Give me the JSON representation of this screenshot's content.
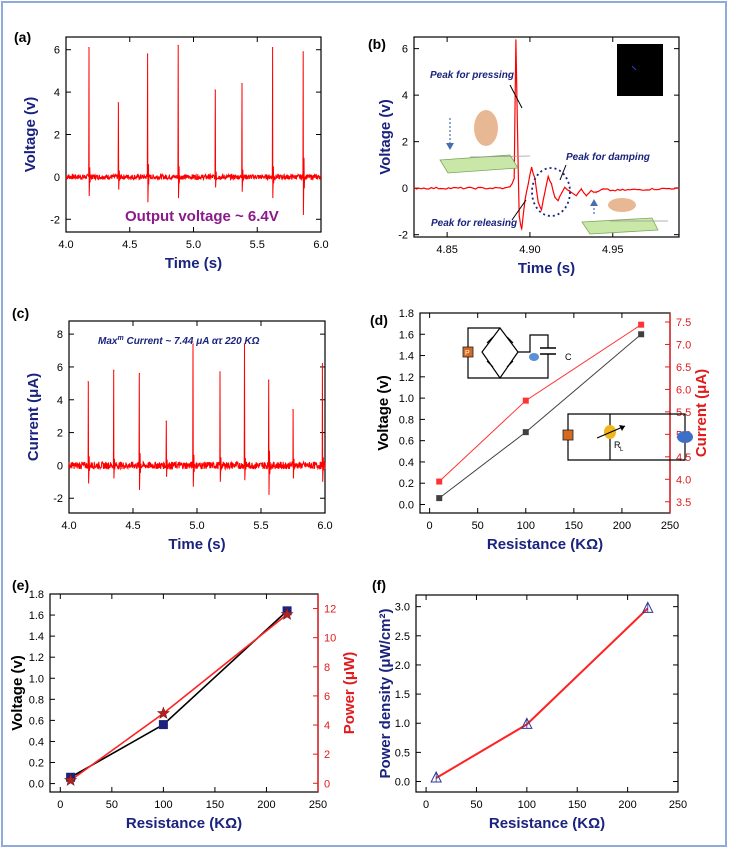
{
  "panels": {
    "a": {
      "label": "(a)"
    },
    "b": {
      "label": "(b)"
    },
    "c": {
      "label": "(c)"
    },
    "d": {
      "label": "(d)"
    },
    "e": {
      "label": "(e)"
    },
    "f": {
      "label": "(f)"
    }
  },
  "chart_data": [
    {
      "id": "a",
      "type": "line",
      "xlabel": "Time (s)",
      "ylabel": "Voltage (v)",
      "xlim": [
        4.0,
        6.0
      ],
      "ylim": [
        -2.6,
        6.6
      ],
      "xticks": [
        4.0,
        4.5,
        5.0,
        5.5,
        6.0
      ],
      "yticks": [
        -2,
        0,
        2,
        4,
        6
      ],
      "xtick_labels": [
        "4.0",
        "4.5",
        "5.0",
        "5.5",
        "6.0"
      ],
      "ytick_labels": [
        "-2",
        "0",
        "2",
        "4",
        "6"
      ],
      "annotation": "Output voltage ~ 6.4V",
      "color": "#ff0000",
      "peaks": [
        {
          "x": 4.18,
          "y": 6.1,
          "neg": -0.9
        },
        {
          "x": 4.41,
          "y": 3.5,
          "neg": -0.6
        },
        {
          "x": 4.64,
          "y": 5.8,
          "neg": -1.2
        },
        {
          "x": 4.88,
          "y": 6.2,
          "neg": -1.0
        },
        {
          "x": 5.17,
          "y": 4.1,
          "neg": -0.5
        },
        {
          "x": 5.38,
          "y": 4.4,
          "neg": -0.7
        },
        {
          "x": 5.62,
          "y": 6.1,
          "neg": -1.0
        },
        {
          "x": 5.86,
          "y": 5.9,
          "neg": -1.8
        }
      ]
    },
    {
      "id": "b",
      "type": "line",
      "xlabel": "Time (s)",
      "ylabel": "Voltage (v)",
      "xlim": [
        4.83,
        4.99
      ],
      "ylim": [
        -2.1,
        6.5
      ],
      "xticks": [
        4.85,
        4.9,
        4.95
      ],
      "yticks": [
        -2,
        0,
        2,
        4,
        6
      ],
      "xtick_labels": [
        "4.85",
        "4.90",
        "4.95"
      ],
      "ytick_labels": [
        "-2",
        "0",
        "2",
        "4",
        "6"
      ],
      "color": "#ff0000",
      "annotations": [
        "Peak for pressing",
        "Peak for releasing",
        "Peak for damping"
      ],
      "curve": [
        [
          4.83,
          0.0
        ],
        [
          4.885,
          0.0
        ],
        [
          4.888,
          0.05
        ],
        [
          4.8905,
          0.4
        ],
        [
          4.8915,
          6.4
        ],
        [
          4.8925,
          2.5
        ],
        [
          4.8935,
          -1.2
        ],
        [
          4.895,
          -1.8
        ],
        [
          4.897,
          -0.5
        ],
        [
          4.899,
          0.2
        ],
        [
          4.901,
          0.9
        ],
        [
          4.903,
          0.4
        ],
        [
          4.905,
          -0.6
        ],
        [
          4.907,
          -0.9
        ],
        [
          4.909,
          -0.2
        ],
        [
          4.911,
          0.5
        ],
        [
          4.913,
          0.2
        ],
        [
          4.915,
          -0.4
        ],
        [
          4.917,
          -0.5
        ],
        [
          4.919,
          -0.2
        ],
        [
          4.921,
          0.0
        ],
        [
          4.924,
          -0.1
        ],
        [
          4.928,
          -0.3
        ],
        [
          4.931,
          0.0
        ],
        [
          4.934,
          -0.35
        ],
        [
          4.937,
          -0.1
        ],
        [
          4.94,
          -0.2
        ],
        [
          4.944,
          -0.05
        ],
        [
          4.95,
          -0.1
        ],
        [
          4.99,
          0.0
        ]
      ]
    },
    {
      "id": "c",
      "type": "line",
      "xlabel": "Time (s)",
      "ylabel": "Current (μA)",
      "xlim": [
        4.0,
        6.0
      ],
      "ylim": [
        -2.9,
        8.8
      ],
      "xticks": [
        4.0,
        4.5,
        5.0,
        5.5,
        6.0
      ],
      "yticks": [
        -2,
        0,
        2,
        4,
        6,
        8
      ],
      "xtick_labels": [
        "4.0",
        "4.5",
        "5.0",
        "5.5",
        "6.0"
      ],
      "ytick_labels": [
        "-2",
        "0",
        "2",
        "4",
        "6",
        "8"
      ],
      "annotation_prefix": "Max",
      "annotation_sup": "m",
      "annotation_rest": " Current ~ 7.44 μA ατ 220 KΩ",
      "color": "#ff0000",
      "peaks": [
        {
          "x": 4.15,
          "y": 5.1,
          "neg": -1.1
        },
        {
          "x": 4.35,
          "y": 5.8,
          "neg": -0.8
        },
        {
          "x": 4.55,
          "y": 5.6,
          "neg": -1.5
        },
        {
          "x": 4.76,
          "y": 2.7,
          "neg": -0.7
        },
        {
          "x": 4.97,
          "y": 7.4,
          "neg": -1.3
        },
        {
          "x": 5.18,
          "y": 5.7,
          "neg": -1.0
        },
        {
          "x": 5.37,
          "y": 7.4,
          "neg": -0.9
        },
        {
          "x": 5.56,
          "y": 5.2,
          "neg": -1.8
        },
        {
          "x": 5.75,
          "y": 3.4,
          "neg": -0.8
        },
        {
          "x": 5.98,
          "y": 6.2,
          "neg": -1.0
        }
      ]
    },
    {
      "id": "d",
      "type": "line",
      "xlabel": "Resistance (KΩ)",
      "ylabel": "Voltage (v)",
      "y2label": "Current (μA)",
      "xlim": [
        -10,
        250
      ],
      "ylim": [
        -0.08,
        1.8
      ],
      "y2lim": [
        3.25,
        7.7
      ],
      "xticks": [
        0,
        50,
        100,
        150,
        200,
        250
      ],
      "yticks": [
        0.0,
        0.2,
        0.4,
        0.6,
        0.8,
        1.0,
        1.2,
        1.4,
        1.6,
        1.8
      ],
      "y2ticks": [
        3.5,
        4.0,
        4.5,
        5.0,
        5.5,
        6.0,
        6.5,
        7.0,
        7.5
      ],
      "xtick_labels": [
        "0",
        "50",
        "100",
        "150",
        "200",
        "250"
      ],
      "ytick_labels": [
        "0.0",
        "0.2",
        "0.4",
        "0.6",
        "0.8",
        "1.0",
        "1.2",
        "1.4",
        "1.6",
        "1.8"
      ],
      "y2tick_labels": [
        "3.5",
        "4.0",
        "4.5",
        "5.0",
        "5.5",
        "6.0",
        "6.5",
        "7.0",
        "7.5"
      ],
      "x": [
        10,
        100,
        220
      ],
      "series": [
        {
          "values": [
            0.06,
            0.68,
            1.6
          ],
          "axis": "left",
          "color": "#404040"
        },
        {
          "values": [
            3.95,
            5.75,
            7.44
          ],
          "axis": "right",
          "color": "#ff3333"
        }
      ],
      "inset_labels": {
        "c": "C",
        "rl_main": "R",
        "rl_sub": "L",
        "p": "P"
      }
    },
    {
      "id": "e",
      "type": "line",
      "xlabel": "Resistance (KΩ)",
      "ylabel": "Voltage (v)",
      "y2label": "Power (μW)",
      "xlim": [
        -10,
        250
      ],
      "ylim": [
        -0.08,
        1.8
      ],
      "y2lim": [
        -0.6,
        13.0
      ],
      "xticks": [
        0,
        50,
        100,
        150,
        200,
        250
      ],
      "yticks": [
        0.0,
        0.2,
        0.4,
        0.6,
        0.8,
        1.0,
        1.2,
        1.4,
        1.6,
        1.8
      ],
      "y2ticks": [
        0,
        2,
        4,
        6,
        8,
        10,
        12
      ],
      "xtick_labels": [
        "0",
        "50",
        "100",
        "150",
        "200",
        "250"
      ],
      "ytick_labels": [
        "0.0",
        "0.2",
        "0.4",
        "0.6",
        "0.8",
        "1.0",
        "1.2",
        "1.4",
        "1.6",
        "1.8"
      ],
      "y2tick_labels": [
        "0",
        "2",
        "4",
        "6",
        "8",
        "10",
        "12"
      ],
      "x": [
        10,
        100,
        220
      ],
      "series": [
        {
          "values": [
            0.06,
            0.56,
            1.64
          ],
          "axis": "left",
          "color": "#000000",
          "marker": "#1a237e"
        },
        {
          "values": [
            0.2,
            4.8,
            11.6
          ],
          "axis": "right",
          "color": "#ff2222",
          "marker": "#b22222"
        }
      ]
    },
    {
      "id": "f",
      "type": "line",
      "xlabel": "Resistance (KΩ)",
      "ylabel": "Power density (μW/cm²)",
      "xlim": [
        -10,
        250
      ],
      "ylim": [
        -0.18,
        3.2
      ],
      "xticks": [
        0,
        50,
        100,
        150,
        200,
        250
      ],
      "yticks": [
        0.0,
        0.5,
        1.0,
        1.5,
        2.0,
        2.5,
        3.0
      ],
      "xtick_labels": [
        "0",
        "50",
        "100",
        "150",
        "200",
        "250"
      ],
      "ytick_labels": [
        "0.0",
        "0.5",
        "1.0",
        "1.5",
        "2.0",
        "2.5",
        "3.0"
      ],
      "x": [
        10,
        100,
        220
      ],
      "series": [
        {
          "values": [
            0.06,
            0.98,
            2.97
          ],
          "color": "#ff2222",
          "marker": "#2a3a9a"
        }
      ]
    }
  ]
}
